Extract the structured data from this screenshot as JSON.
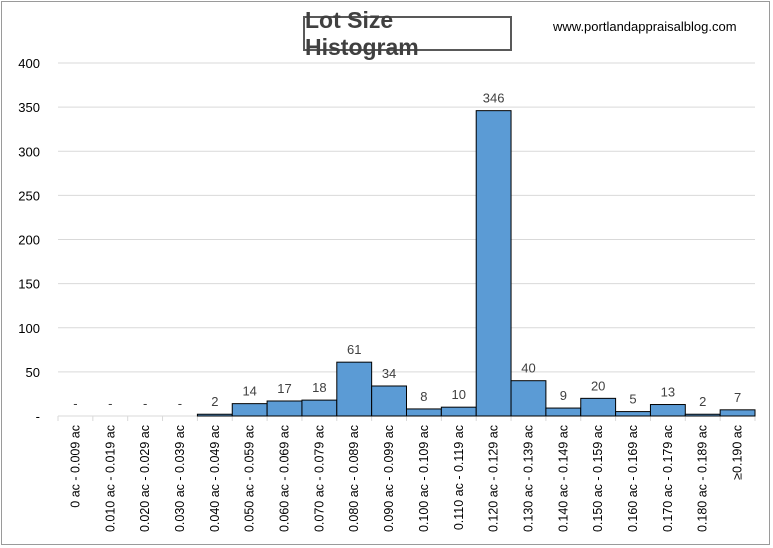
{
  "chart_data": {
    "type": "bar",
    "title": "Lot Size Histogram",
    "source": "www.portlandappraisalblog.com",
    "categories": [
      "0 ac - 0.009 ac",
      "0.010 ac - 0.019 ac",
      "0.020 ac - 0.029 ac",
      "0.030 ac - 0.039 ac",
      "0.040 ac - 0.049 ac",
      "0.050 ac - 0.059 ac",
      "0.060 ac - 0.069 ac",
      "0.070 ac - 0.079 ac",
      "0.080 ac - 0.089 ac",
      "0.090 ac - 0.099 ac",
      "0.100 ac - 0.109 ac",
      "0.110 ac - 0.119 ac",
      "0.120 ac - 0.129 ac",
      "0.130 ac - 0.139 ac",
      "0.140 ac - 0.149 ac",
      "0.150 ac - 0.159 ac",
      "0.160 ac - 0.169 ac",
      "0.170 ac - 0.179 ac",
      "0.180 ac - 0.189 ac",
      "≥0.190 ac"
    ],
    "values": [
      0,
      0,
      0,
      0,
      2,
      14,
      17,
      18,
      61,
      34,
      8,
      10,
      346,
      40,
      9,
      20,
      5,
      13,
      2,
      7
    ],
    "data_labels": [
      "-",
      "-",
      "-",
      "-",
      "2",
      "14",
      "17",
      "18",
      "61",
      "34",
      "8",
      "10",
      "346",
      "40",
      "9",
      "20",
      "5",
      "13",
      "2",
      "7"
    ],
    "yticks": [
      "-",
      "50",
      "100",
      "150",
      "200",
      "250",
      "300",
      "350",
      "400"
    ],
    "ylim": [
      0,
      400
    ],
    "grid": true,
    "xlabel": "",
    "ylabel": "",
    "colors": {
      "bar": "#5b9bd5",
      "bar_edge": "#000000",
      "grid": "#d9d9d9",
      "text": "#404040"
    }
  }
}
